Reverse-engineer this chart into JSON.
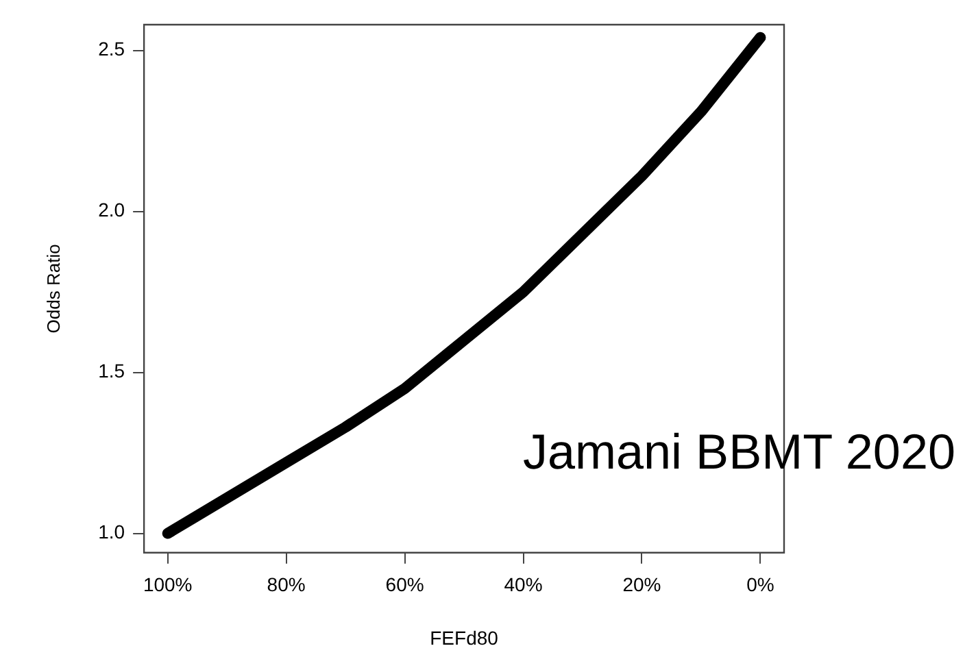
{
  "chart_data": {
    "type": "line",
    "xlabel": "FEFd80",
    "ylabel": "Odds Ratio",
    "x": [
      100,
      90,
      80,
      70,
      60,
      50,
      40,
      30,
      20,
      10,
      0
    ],
    "series": [
      {
        "color": "#000000",
        "values": [
          1.0,
          1.11,
          1.22,
          1.33,
          1.45,
          1.6,
          1.75,
          1.93,
          2.11,
          2.31,
          2.54
        ]
      }
    ],
    "xlim": [
      104,
      -4
    ],
    "xticks": [
      {
        "value": 100,
        "label": "100%"
      },
      {
        "value": 80,
        "label": "80%"
      },
      {
        "value": 60,
        "label": "60%"
      },
      {
        "value": 40,
        "label": "40%"
      },
      {
        "value": 20,
        "label": "20%"
      },
      {
        "value": 0,
        "label": "0%"
      }
    ],
    "ylim": [
      0.94,
      2.58
    ],
    "yticks": [
      {
        "value": 1,
        "label": "1.0"
      },
      {
        "value": 1.5,
        "label": "1.5"
      },
      {
        "value": 2,
        "label": "2.0"
      },
      {
        "value": 2.5,
        "label": "2.5"
      }
    ],
    "grid": false,
    "legend": false,
    "marker": "none",
    "line_style": "solid",
    "annotations": [
      "Jamani BBMT 2020"
    ]
  }
}
